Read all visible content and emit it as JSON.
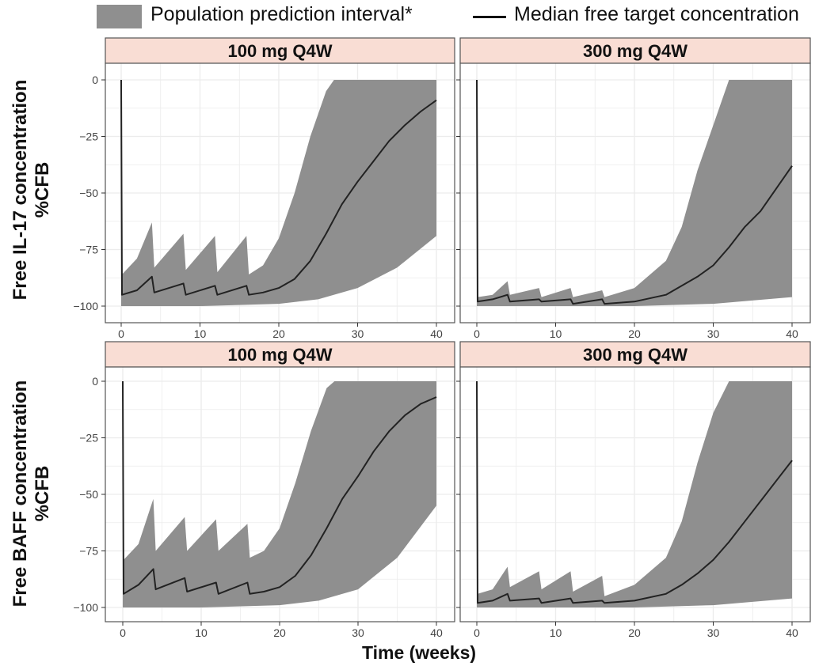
{
  "legend": {
    "band_label": "Population prediction interval*",
    "line_label": "Median free target concentration",
    "band_color": "#8f8f8f",
    "line_color": "#222222"
  },
  "xlabel": "Time (weeks)",
  "row_labels": [
    "Free IL-17 concentration\n%CFB",
    "Free  BAFF concentration\n%CFB"
  ],
  "colors": {
    "strip_fill": "#f9ddd4",
    "panel_border": "#555555",
    "grid": "#ececec",
    "band": "#8f8f8f",
    "line": "#222222"
  },
  "chart_data": [
    {
      "type": "area",
      "title": "100 mg Q4W",
      "ylabel": "Free IL-17 concentration %CFB",
      "xlim": [
        0,
        40
      ],
      "ylim": [
        -100,
        0
      ],
      "xticks": [
        0,
        10,
        20,
        30,
        40
      ],
      "yticks": [
        0,
        -25,
        -50,
        -75,
        -100
      ],
      "band_upper": [
        [
          0,
          0
        ],
        [
          0.1,
          -86
        ],
        [
          2,
          -79
        ],
        [
          3.9,
          -63
        ],
        [
          4.2,
          -83
        ],
        [
          7.9,
          -68
        ],
        [
          8.2,
          -84
        ],
        [
          11.9,
          -69
        ],
        [
          12.2,
          -85
        ],
        [
          15.9,
          -69
        ],
        [
          16.2,
          -86
        ],
        [
          18,
          -82
        ],
        [
          20,
          -70
        ],
        [
          22,
          -50
        ],
        [
          24,
          -25
        ],
        [
          26,
          -5
        ],
        [
          27,
          0
        ],
        [
          40,
          0
        ]
      ],
      "band_lower": [
        [
          40,
          -69
        ],
        [
          35,
          -83
        ],
        [
          30,
          -92
        ],
        [
          25,
          -97
        ],
        [
          20,
          -99
        ],
        [
          10,
          -100
        ],
        [
          0,
          -100
        ]
      ],
      "median": [
        [
          0,
          0
        ],
        [
          0.1,
          -95
        ],
        [
          2,
          -93
        ],
        [
          3.9,
          -87
        ],
        [
          4.2,
          -94
        ],
        [
          7.9,
          -90
        ],
        [
          8.2,
          -95
        ],
        [
          11.9,
          -91
        ],
        [
          12.2,
          -95
        ],
        [
          15.9,
          -91
        ],
        [
          16.2,
          -95
        ],
        [
          18,
          -94
        ],
        [
          20,
          -92
        ],
        [
          22,
          -88
        ],
        [
          24,
          -80
        ],
        [
          26,
          -68
        ],
        [
          28,
          -55
        ],
        [
          30,
          -45
        ],
        [
          32,
          -36
        ],
        [
          34,
          -27
        ],
        [
          36,
          -20
        ],
        [
          38,
          -14
        ],
        [
          40,
          -9
        ]
      ]
    },
    {
      "type": "area",
      "title": "300 mg Q4W",
      "ylabel": "Free IL-17 concentration %CFB",
      "xlim": [
        0,
        40
      ],
      "ylim": [
        -100,
        0
      ],
      "xticks": [
        0,
        10,
        20,
        30,
        40
      ],
      "yticks": [
        0,
        -25,
        -50,
        -75,
        -100
      ],
      "band_upper": [
        [
          0,
          0
        ],
        [
          0.1,
          -96
        ],
        [
          2,
          -95
        ],
        [
          3.9,
          -89
        ],
        [
          4.2,
          -95
        ],
        [
          7.9,
          -92
        ],
        [
          8.2,
          -96
        ],
        [
          11.9,
          -92
        ],
        [
          12.2,
          -96
        ],
        [
          15.9,
          -93
        ],
        [
          16.2,
          -96
        ],
        [
          20,
          -92
        ],
        [
          24,
          -80
        ],
        [
          26,
          -65
        ],
        [
          28,
          -40
        ],
        [
          30,
          -20
        ],
        [
          32,
          0
        ],
        [
          40,
          0
        ]
      ],
      "band_lower": [
        [
          40,
          -96
        ],
        [
          30,
          -99
        ],
        [
          20,
          -100
        ],
        [
          10,
          -100
        ],
        [
          0,
          -100
        ]
      ],
      "median": [
        [
          0,
          0
        ],
        [
          0.1,
          -98
        ],
        [
          2,
          -97
        ],
        [
          3.9,
          -95
        ],
        [
          4.2,
          -98
        ],
        [
          7.9,
          -97
        ],
        [
          8.2,
          -98
        ],
        [
          11.9,
          -97
        ],
        [
          12.2,
          -99
        ],
        [
          15.9,
          -97
        ],
        [
          16.2,
          -99
        ],
        [
          20,
          -98
        ],
        [
          24,
          -95
        ],
        [
          26,
          -91
        ],
        [
          28,
          -87
        ],
        [
          30,
          -82
        ],
        [
          32,
          -74
        ],
        [
          34,
          -65
        ],
        [
          36,
          -58
        ],
        [
          38,
          -48
        ],
        [
          40,
          -38
        ]
      ]
    },
    {
      "type": "area",
      "title": "100 mg Q4W",
      "ylabel": "Free BAFF concentration %CFB",
      "xlim": [
        0,
        40
      ],
      "ylim": [
        -100,
        0
      ],
      "xticks": [
        0,
        10,
        20,
        30,
        40
      ],
      "yticks": [
        0,
        -25,
        -50,
        -75,
        -100
      ],
      "band_upper": [
        [
          0,
          0
        ],
        [
          0.1,
          -79
        ],
        [
          2,
          -72
        ],
        [
          3.9,
          -52
        ],
        [
          4.2,
          -75
        ],
        [
          7.9,
          -60
        ],
        [
          8.2,
          -75
        ],
        [
          11.9,
          -61
        ],
        [
          12.2,
          -75
        ],
        [
          15.9,
          -63
        ],
        [
          16.2,
          -78
        ],
        [
          18,
          -75
        ],
        [
          20,
          -65
        ],
        [
          22,
          -45
        ],
        [
          24,
          -22
        ],
        [
          26,
          -3
        ],
        [
          27,
          0
        ],
        [
          40,
          0
        ]
      ],
      "band_lower": [
        [
          40,
          -55
        ],
        [
          35,
          -78
        ],
        [
          30,
          -92
        ],
        [
          25,
          -97
        ],
        [
          20,
          -99
        ],
        [
          10,
          -100
        ],
        [
          0,
          -100
        ]
      ],
      "median": [
        [
          0,
          0
        ],
        [
          0.1,
          -94
        ],
        [
          2,
          -90
        ],
        [
          3.9,
          -83
        ],
        [
          4.2,
          -92
        ],
        [
          7.9,
          -87
        ],
        [
          8.2,
          -93
        ],
        [
          11.9,
          -89
        ],
        [
          12.2,
          -94
        ],
        [
          15.9,
          -89
        ],
        [
          16.2,
          -94
        ],
        [
          18,
          -93
        ],
        [
          20,
          -91
        ],
        [
          22,
          -86
        ],
        [
          24,
          -77
        ],
        [
          26,
          -65
        ],
        [
          28,
          -52
        ],
        [
          30,
          -42
        ],
        [
          32,
          -31
        ],
        [
          34,
          -22
        ],
        [
          36,
          -15
        ],
        [
          38,
          -10
        ],
        [
          40,
          -7
        ]
      ]
    },
    {
      "type": "area",
      "title": "300 mg Q4W",
      "ylabel": "Free BAFF concentration %CFB",
      "xlim": [
        0,
        40
      ],
      "ylim": [
        -100,
        0
      ],
      "xticks": [
        0,
        10,
        20,
        30,
        40
      ],
      "yticks": [
        0,
        -25,
        -50,
        -75,
        -100
      ],
      "band_upper": [
        [
          0,
          0
        ],
        [
          0.1,
          -94
        ],
        [
          2,
          -92
        ],
        [
          3.9,
          -82
        ],
        [
          4.2,
          -91
        ],
        [
          7.9,
          -84
        ],
        [
          8.2,
          -92
        ],
        [
          11.9,
          -84
        ],
        [
          12.2,
          -93
        ],
        [
          15.9,
          -86
        ],
        [
          16.2,
          -95
        ],
        [
          20,
          -90
        ],
        [
          24,
          -78
        ],
        [
          26,
          -62
        ],
        [
          28,
          -36
        ],
        [
          30,
          -14
        ],
        [
          32,
          0
        ],
        [
          40,
          0
        ]
      ],
      "band_lower": [
        [
          40,
          -96
        ],
        [
          30,
          -99
        ],
        [
          20,
          -100
        ],
        [
          10,
          -100
        ],
        [
          0,
          -100
        ]
      ],
      "median": [
        [
          0,
          0
        ],
        [
          0.1,
          -98
        ],
        [
          2,
          -97
        ],
        [
          3.9,
          -94
        ],
        [
          4.2,
          -97
        ],
        [
          7.9,
          -96
        ],
        [
          8.2,
          -98
        ],
        [
          11.9,
          -96
        ],
        [
          12.2,
          -98
        ],
        [
          15.9,
          -97
        ],
        [
          16.2,
          -98
        ],
        [
          20,
          -97
        ],
        [
          24,
          -94
        ],
        [
          26,
          -90
        ],
        [
          28,
          -85
        ],
        [
          30,
          -79
        ],
        [
          32,
          -71
        ],
        [
          34,
          -62
        ],
        [
          36,
          -53
        ],
        [
          38,
          -44
        ],
        [
          40,
          -35
        ]
      ]
    }
  ]
}
